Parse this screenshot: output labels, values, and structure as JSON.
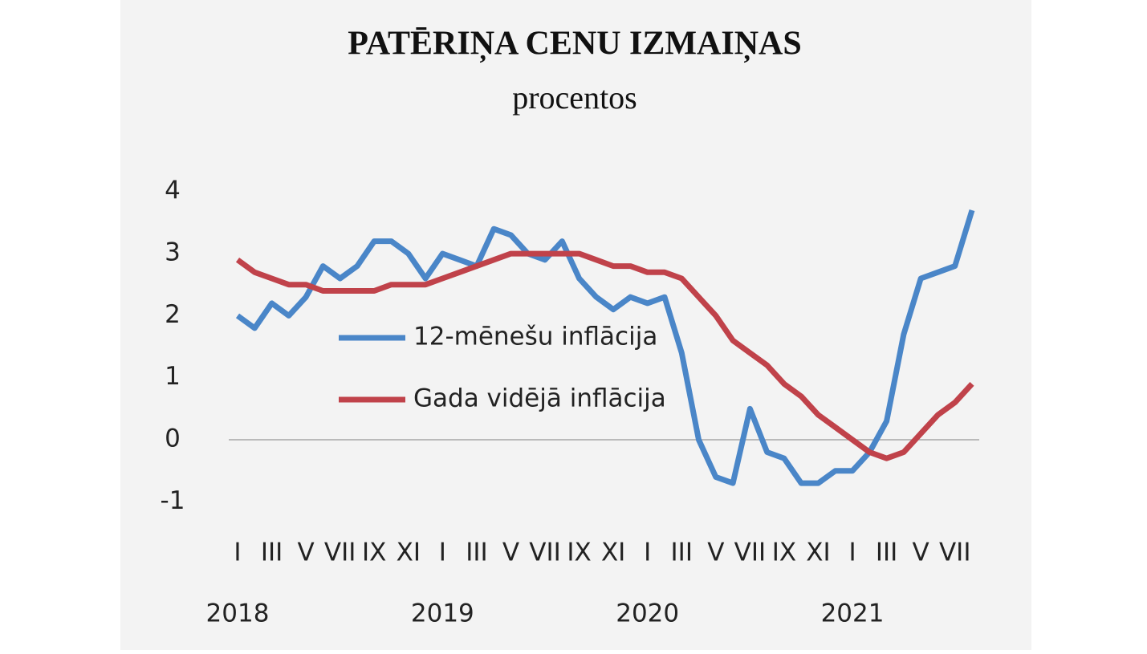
{
  "chart_data": {
    "type": "line",
    "title": "PATĒRIŅA CENU IZMAIŅAS",
    "subtitle": "procentos",
    "categories": [
      "I",
      null,
      "III",
      null,
      "V",
      null,
      "VII",
      null,
      "IX",
      null,
      "XI",
      null,
      "I",
      null,
      "III",
      null,
      "V",
      null,
      "VII",
      null,
      "IX",
      null,
      "XI",
      null,
      "I",
      null,
      "III",
      null,
      "V",
      null,
      "VII",
      null,
      "IX",
      null,
      "XI",
      null,
      "I",
      null,
      "III",
      null,
      "V",
      null,
      "VII",
      null
    ],
    "years": [
      "2018",
      "2019",
      "2020",
      "2021"
    ],
    "series": [
      {
        "name": "12-mēnešu inflācija",
        "color": "#4a86c8",
        "values": [
          2.0,
          1.8,
          2.2,
          2.0,
          2.3,
          2.8,
          2.6,
          2.8,
          3.2,
          3.2,
          3.0,
          2.6,
          3.0,
          2.9,
          2.8,
          3.4,
          3.3,
          3.0,
          2.9,
          3.2,
          2.6,
          2.3,
          2.1,
          2.3,
          2.2,
          2.3,
          1.4,
          0.0,
          -0.6,
          -0.7,
          0.5,
          -0.2,
          -0.3,
          -0.7,
          -0.7,
          -0.5,
          -0.5,
          -0.2,
          0.3,
          1.7,
          2.6,
          2.7,
          2.8,
          3.7
        ]
      },
      {
        "name": "Gada vidējā inflācija",
        "color": "#c0424a",
        "values": [
          2.9,
          2.7,
          2.6,
          2.5,
          2.5,
          2.4,
          2.4,
          2.4,
          2.4,
          2.5,
          2.5,
          2.5,
          2.6,
          2.7,
          2.8,
          2.9,
          3.0,
          3.0,
          3.0,
          3.0,
          3.0,
          2.9,
          2.8,
          2.8,
          2.7,
          2.7,
          2.6,
          2.3,
          2.0,
          1.6,
          1.4,
          1.2,
          0.9,
          0.7,
          0.4,
          0.2,
          0.0,
          -0.2,
          -0.3,
          -0.2,
          0.1,
          0.4,
          0.6,
          0.9
        ]
      }
    ],
    "ylim": [
      -1.3,
      4.3
    ],
    "yticks": [
      -1,
      0,
      1,
      2,
      3,
      4
    ],
    "grid": false,
    "legend": "center-left"
  }
}
